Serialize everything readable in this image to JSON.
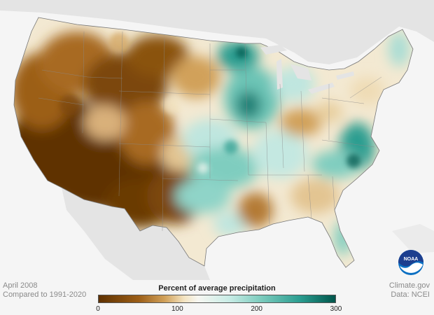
{
  "map": {
    "legend_title": "Percent of average precipitation",
    "legend_ticks": [
      "0",
      "100",
      "200",
      "300"
    ],
    "legend_min": 0,
    "legend_max": 300,
    "colors": {
      "very_dry": "#5e3100",
      "dry": "#9c5e17",
      "moderately_dry": "#d1a15a",
      "near_normal": "#f7f1e4",
      "wet": "#8fd4c8",
      "very_wet": "#2a9d90",
      "extremely_wet": "#00554b"
    }
  },
  "captions": {
    "date": "April 2008",
    "baseline": "Compared to 1991-2020",
    "source_site": "Climate.gov",
    "source_data": "Data: NCEI"
  },
  "logo": {
    "text": "NOAA",
    "icon": "noaa-logo-icon"
  }
}
